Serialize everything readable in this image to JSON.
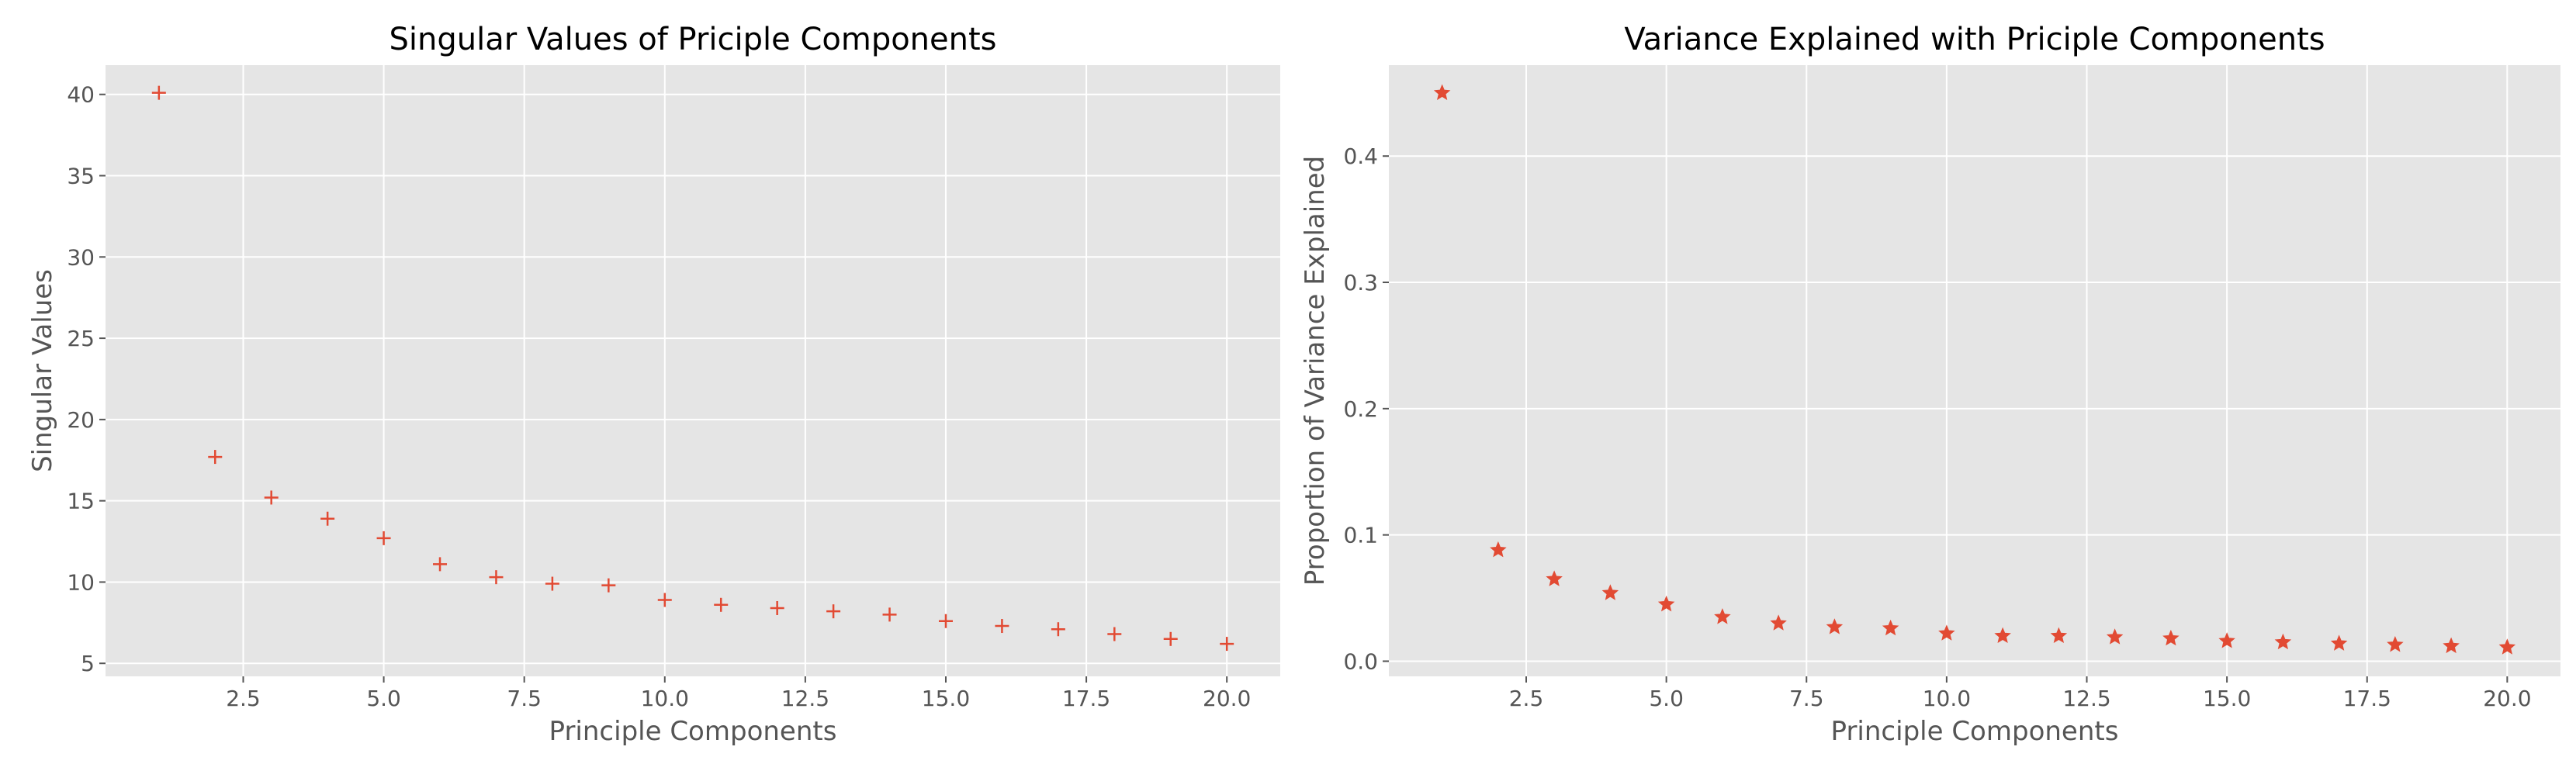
{
  "chart_data": [
    {
      "type": "scatter",
      "title": "Singular Values of Priciple Components",
      "xlabel": "Principle Components",
      "ylabel": "Singular Values",
      "marker": "plus",
      "color": "#e24a33",
      "background": "#e5e5e5",
      "grid": true,
      "xlim": [
        0.05,
        20.95
      ],
      "ylim": [
        4.2,
        41.8
      ],
      "xticks": [
        "2.5",
        "5.0",
        "7.5",
        "10.0",
        "12.5",
        "15.0",
        "17.5",
        "20.0"
      ],
      "yticks": [
        "5",
        "10",
        "15",
        "20",
        "25",
        "30",
        "35",
        "40"
      ],
      "x": [
        1,
        2,
        3,
        4,
        5,
        6,
        7,
        8,
        9,
        10,
        11,
        12,
        13,
        14,
        15,
        16,
        17,
        18,
        19,
        20
      ],
      "y": [
        40.1,
        17.7,
        15.2,
        13.9,
        12.7,
        11.1,
        10.3,
        9.9,
        9.8,
        8.9,
        8.6,
        8.4,
        8.2,
        8.0,
        7.6,
        7.3,
        7.1,
        6.8,
        6.5,
        6.2
      ]
    },
    {
      "type": "scatter",
      "title": "Variance Explained with Priciple Components",
      "xlabel": "Principle Components",
      "ylabel": "Proportion of Variance Explained",
      "marker": "star",
      "color": "#e24a33",
      "background": "#e5e5e5",
      "grid": true,
      "xlim": [
        0.05,
        20.95
      ],
      "ylim": [
        -0.012,
        0.472
      ],
      "xticks": [
        "2.5",
        "5.0",
        "7.5",
        "10.0",
        "12.5",
        "15.0",
        "17.5",
        "20.0"
      ],
      "yticks": [
        "0.0",
        "0.1",
        "0.2",
        "0.3",
        "0.4"
      ],
      "x": [
        1,
        2,
        3,
        4,
        5,
        6,
        7,
        8,
        9,
        10,
        11,
        12,
        13,
        14,
        15,
        16,
        17,
        18,
        19,
        20
      ],
      "y": [
        0.45,
        0.088,
        0.065,
        0.054,
        0.045,
        0.035,
        0.03,
        0.027,
        0.026,
        0.022,
        0.02,
        0.02,
        0.019,
        0.018,
        0.016,
        0.015,
        0.014,
        0.013,
        0.012,
        0.011
      ]
    }
  ]
}
